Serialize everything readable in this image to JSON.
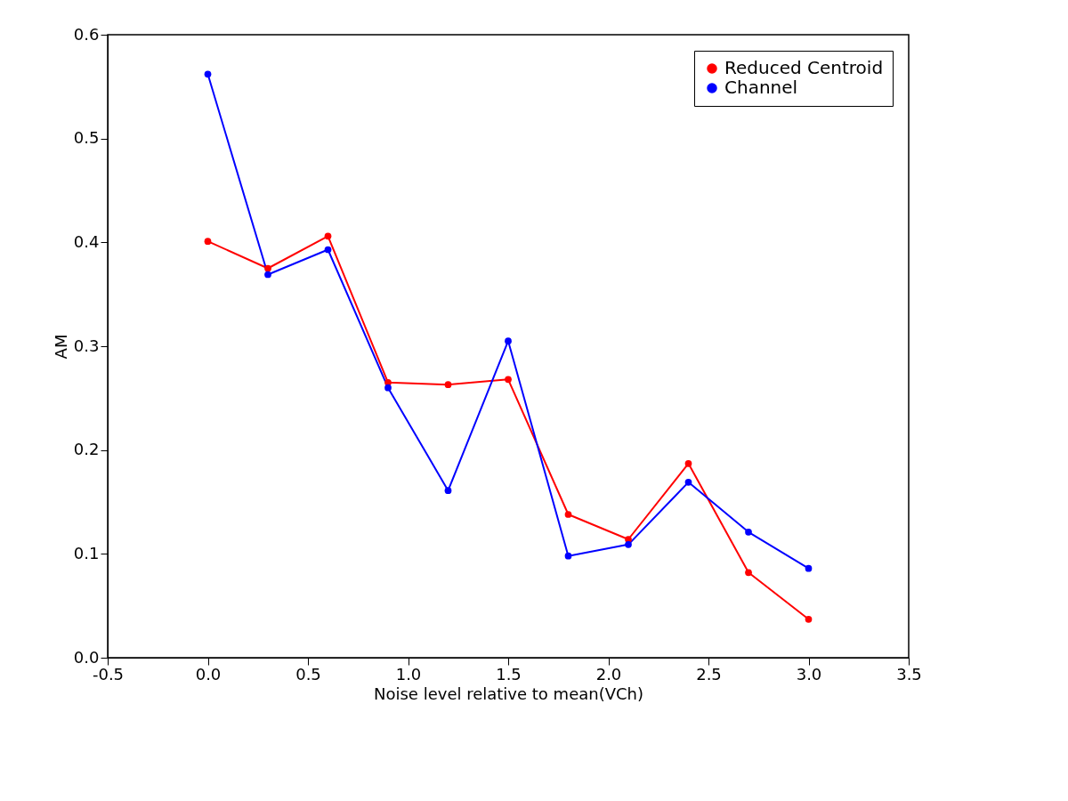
{
  "chart_data": {
    "type": "line",
    "xlabel": "Noise level relative to mean(VCh)",
    "ylabel": "AM",
    "x": [
      0.0,
      0.3,
      0.6,
      0.9,
      1.2,
      1.5,
      1.8,
      2.1,
      2.4,
      2.7,
      3.0
    ],
    "series": [
      {
        "name": "Reduced Centroid",
        "color": "#ff0000",
        "values": [
          0.401,
          0.375,
          0.406,
          0.265,
          0.263,
          0.268,
          0.138,
          0.114,
          0.187,
          0.082,
          0.037
        ]
      },
      {
        "name": "Channel",
        "color": "#0000ff",
        "values": [
          0.562,
          0.369,
          0.393,
          0.26,
          0.161,
          0.305,
          0.098,
          0.109,
          0.169,
          0.121,
          0.086
        ]
      }
    ],
    "xlim": [
      -0.5,
      3.5
    ],
    "xticks": [
      -0.5,
      {
        "value": 0,
        "label": "0.0"
      },
      0.5,
      {
        "value": 1,
        "label": "1.0"
      },
      1.5,
      {
        "value": 2,
        "label": "2.0"
      },
      2.5,
      {
        "value": 3,
        "label": "3.0"
      },
      3.5
    ],
    "ylim": [
      0.0,
      0.6
    ],
    "yticks": [
      {
        "value": 0,
        "label": "0.0"
      },
      0.1,
      0.2,
      0.3,
      0.4,
      0.5,
      0.6
    ],
    "grid": false,
    "legend": "top right",
    "marker": "circle",
    "line_style": "solid"
  }
}
